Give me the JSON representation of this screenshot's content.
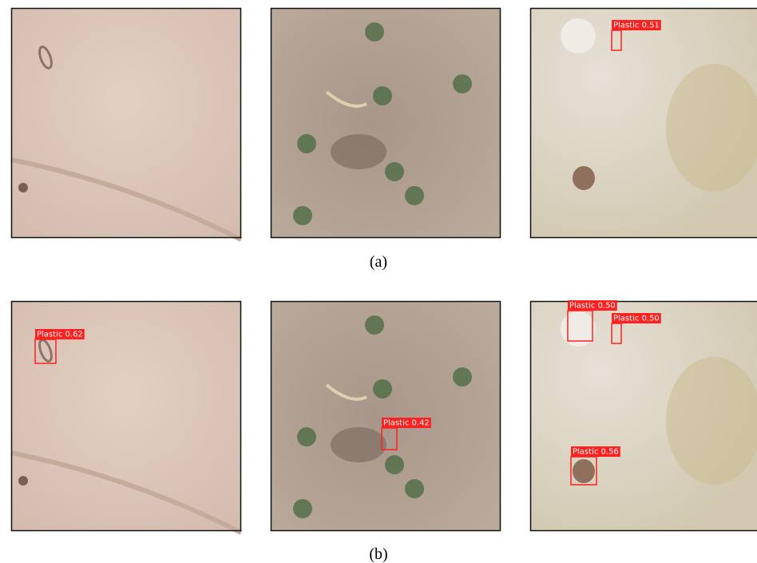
{
  "rows": [
    {
      "caption": "(a)",
      "panels": [
        {
          "detections": []
        },
        {
          "detections": []
        },
        {
          "detections": [
            {
              "label": "Plastic 0.51"
            }
          ]
        }
      ]
    },
    {
      "caption": "(b)",
      "panels": [
        {
          "detections": [
            {
              "label": "Plastic 0.62"
            }
          ]
        },
        {
          "detections": [
            {
              "label": "Plastic 0.42"
            }
          ]
        },
        {
          "detections": [
            {
              "label": "Plastic 0.50"
            },
            {
              "label": "Plastic 0.50"
            },
            {
              "label": "Plastic 0.56"
            }
          ]
        }
      ]
    }
  ]
}
